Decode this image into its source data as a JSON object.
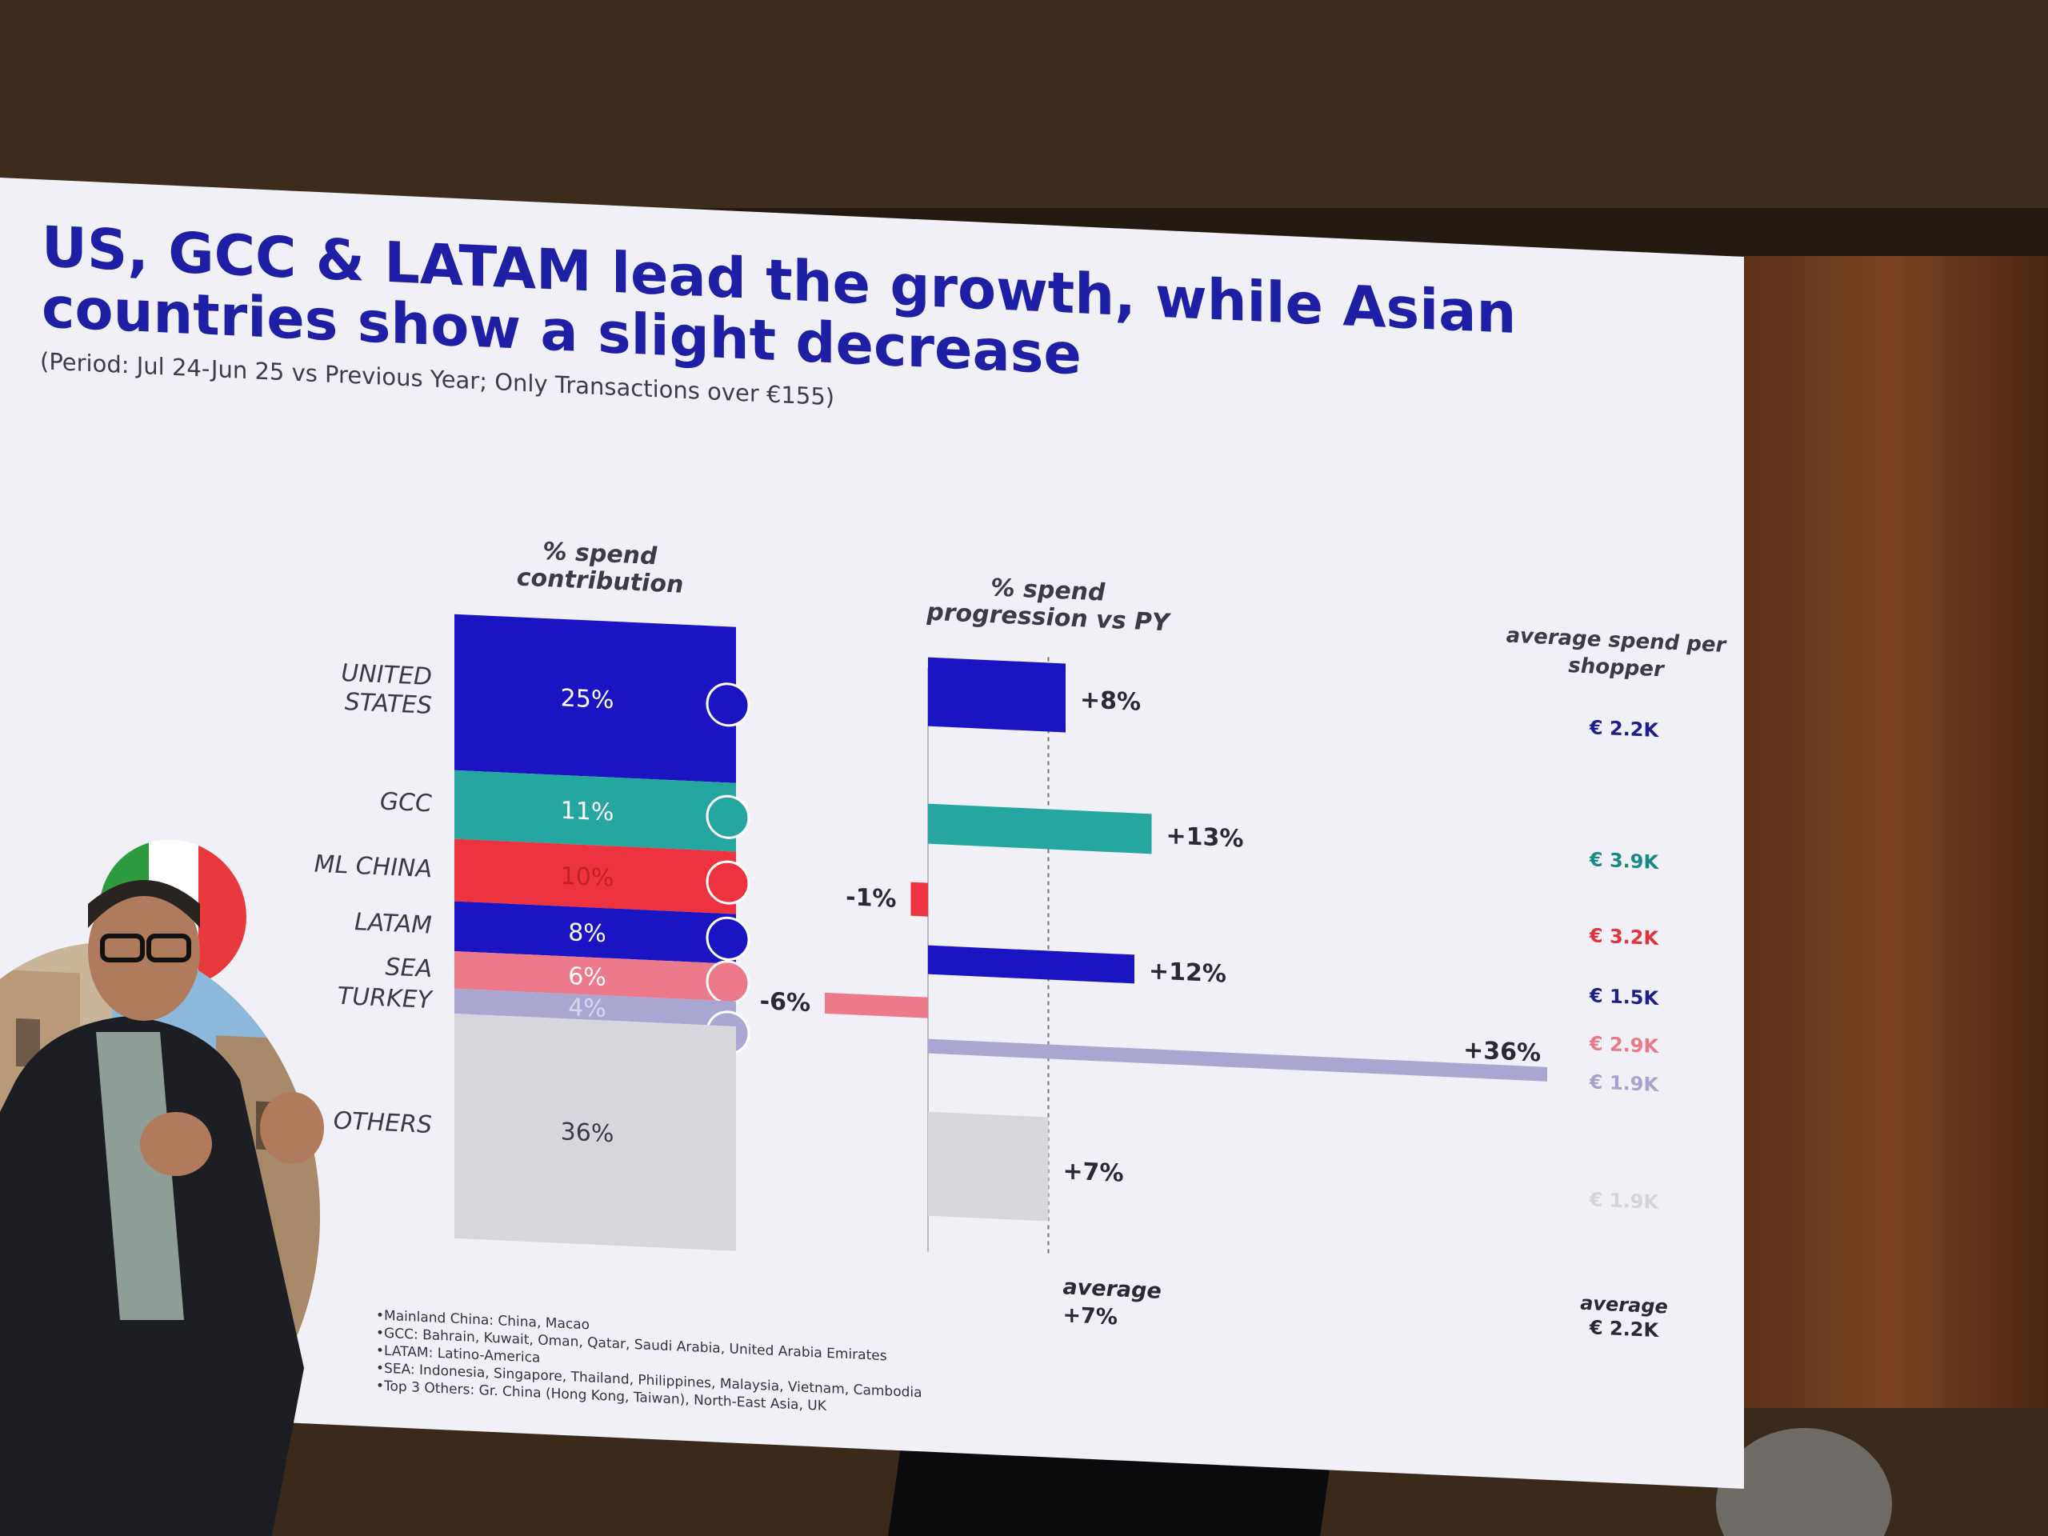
{
  "slide": {
    "title": "US, GCC & LATAM lead the growth, while Asian countries show a slight decrease",
    "subtitle": "(Period: Jul 24-Jun 25 vs Previous Year; Only Transactions over €155)",
    "col_spend_contribution": "% spend contribution",
    "col_progression": "% spend progression vs PY",
    "col_avg_spend": "average spend per shopper",
    "avg_progression_label": "average",
    "avg_progression_value": "+7%",
    "avg_spend_label": "average",
    "avg_spend_value": "€ 2.2K",
    "footnotes": [
      "Mainland China: China, Macao",
      "GCC: Bahrain, Kuwait, Oman, Qatar, Saudi Arabia, United Arabia Emirates",
      "LATAM: Latino-America",
      "SEA: Indonesia, Singapore, Thailand, Philippines, Malaysia, Vietnam, Cambodia",
      "Top 3 Others: Gr. China (Hong Kong, Taiwan), North-East Asia, UK"
    ]
  },
  "chart_data": {
    "type": "bar",
    "categories": [
      "UNITED STATES",
      "GCC",
      "ML CHINA",
      "LATAM",
      "SEA",
      "TURKEY",
      "OTHERS"
    ],
    "series": [
      {
        "name": "% spend contribution",
        "values": [
          25,
          11,
          10,
          8,
          6,
          4,
          36
        ]
      },
      {
        "name": "% spend progression vs PY",
        "values": [
          8,
          13,
          -1,
          12,
          -6,
          36,
          7
        ]
      }
    ],
    "contribution_labels": [
      "25%",
      "11%",
      "10%",
      "8%",
      "6%",
      "4%",
      "36%"
    ],
    "progression_labels": [
      "+8%",
      "+13%",
      "-1%",
      "+12%",
      "-6%",
      "+36%",
      "+7%"
    ],
    "avg_spend_labels": [
      "€ 2.2K",
      "€ 3.9K",
      "€ 3.2K",
      "€ 1.5K",
      "€ 2.9K",
      "€ 1.9K",
      "€ 1.9K"
    ],
    "average_progression": 7,
    "colors": [
      "#1a14c2",
      "#26a6a0",
      "#ee3340",
      "#1a14c2",
      "#ec7a8a",
      "#aaa6d2",
      "#d6d6dc"
    ],
    "text_colors": [
      "#1f1f8a",
      "#1a8a86",
      "#e3323e",
      "#1f1f8a",
      "#ea7a8a",
      "#a7a3cc",
      "#d4d4da"
    ],
    "icons": [
      "us-flag-icon",
      "gcc-map-icon",
      "china-flag-icon",
      "latam-map-icon",
      "sea-map-icon",
      "turkey-flag-icon",
      null
    ]
  }
}
